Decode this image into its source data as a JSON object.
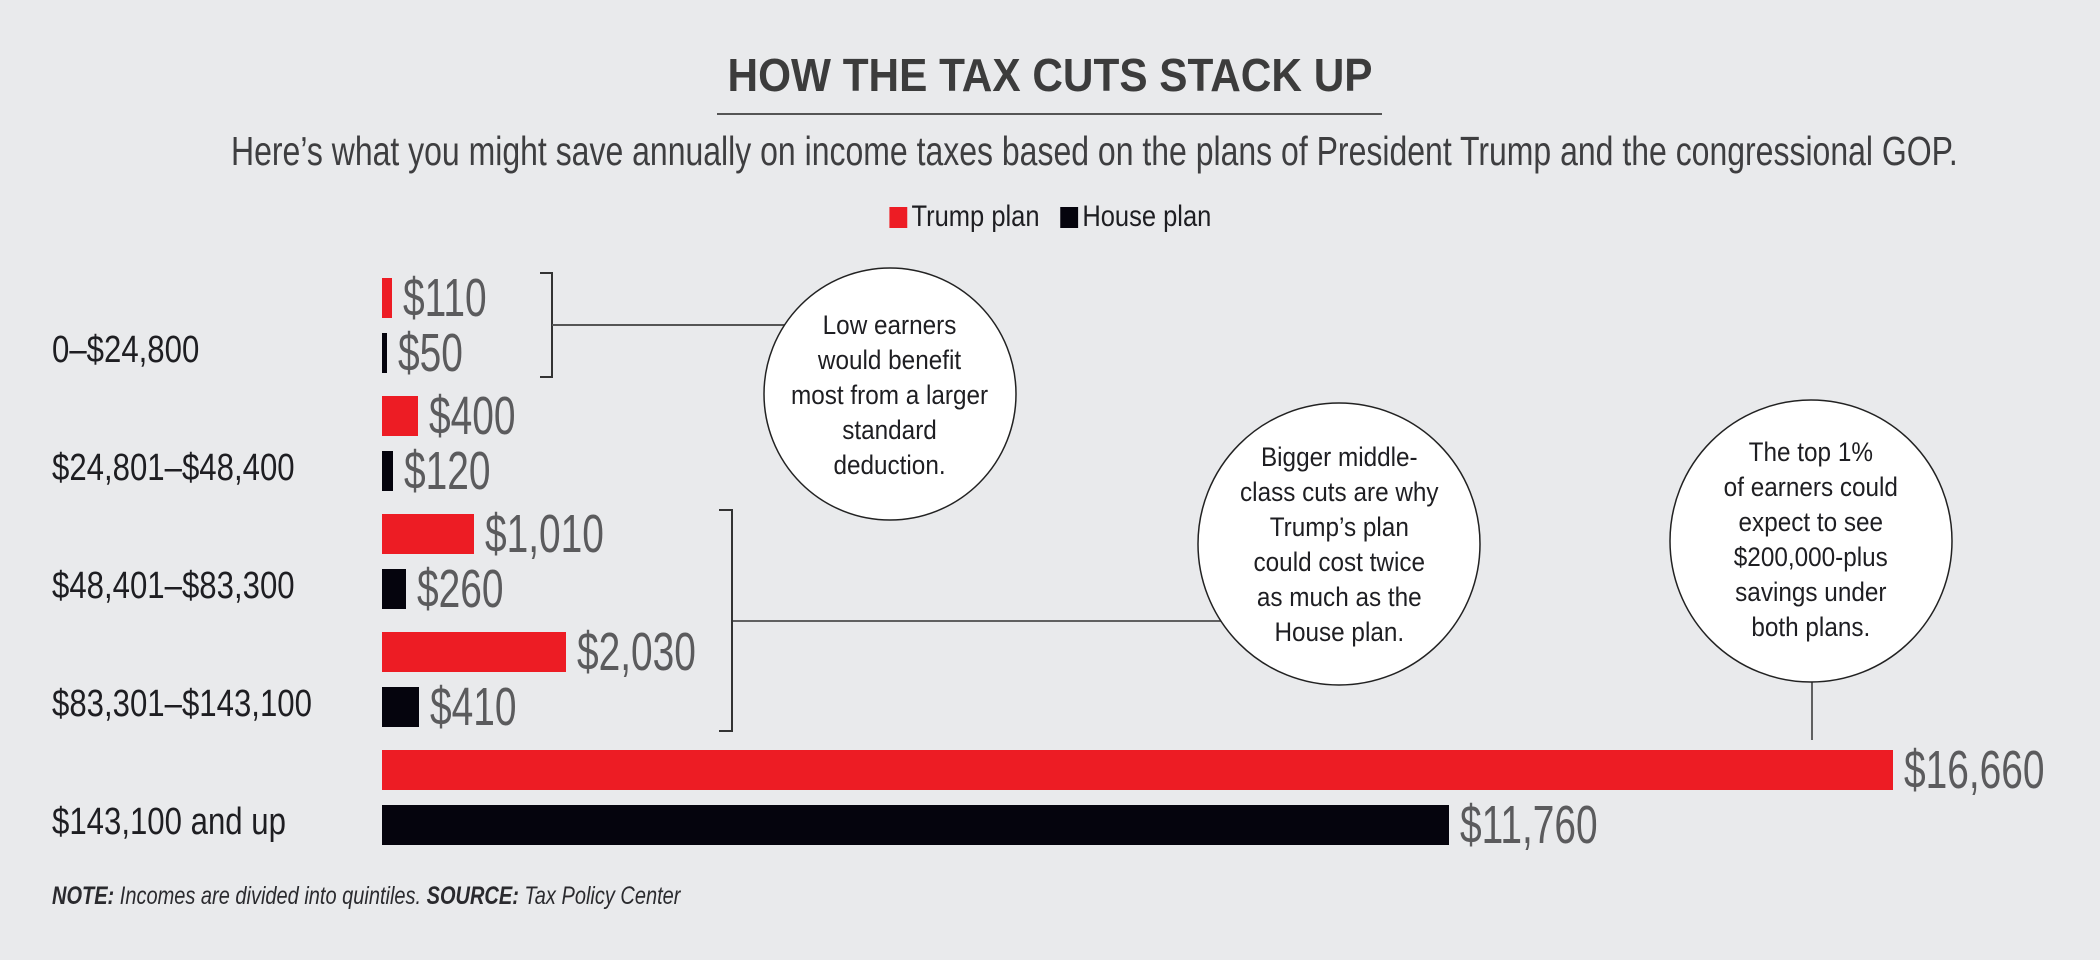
{
  "title": "HOW THE TAX CUTS STACK UP",
  "subtitle": "Here’s what you might save annually on income taxes based on the plans of President Trump and the congressional GOP.",
  "colors": {
    "background": "#e9eaec",
    "trump": "#ed1c24",
    "house": "#05040d",
    "value_label": "#5b5b5d",
    "text": "#1e1e22"
  },
  "legend": [
    {
      "label": "Trump plan",
      "color": "#ed1c24"
    },
    {
      "label": "House plan",
      "color": "#05040d"
    }
  ],
  "chart_data": {
    "type": "bar",
    "orientation": "horizontal",
    "title": "HOW THE TAX CUTS STACK UP",
    "subtitle": "Here’s what you might save annually on income taxes based on the plans of President Trump and the congressional GOP.",
    "categories": [
      "0–$24,800",
      "$24,801–$48,400",
      "$48,401–$83,300",
      "$83,301–$143,100",
      "$143,100 and up"
    ],
    "series": [
      {
        "name": "Trump plan",
        "values": [
          110,
          400,
          1010,
          2030,
          16660
        ],
        "labels": [
          "$110",
          "$400",
          "$1,010",
          "$2,030",
          "$16,660"
        ]
      },
      {
        "name": "House plan",
        "values": [
          50,
          120,
          260,
          410,
          11760
        ],
        "labels": [
          "$50",
          "$120",
          "$260",
          "$410",
          "$11,760"
        ]
      }
    ],
    "xlabel": "",
    "ylabel": "",
    "xlim": [
      0,
      16660
    ],
    "grid": false,
    "legend_position": "top-center",
    "annotations": [
      {
        "text": "Low earners would benefit most from a larger standard deduction.",
        "lines": [
          "Low earners",
          "would benefit",
          "most from a larger",
          "standard",
          "deduction."
        ],
        "refers_to": [
          "0–$24,800"
        ]
      },
      {
        "text": "Bigger middle-class cuts are why Trump’s plan could cost twice as much as the House plan.",
        "lines": [
          "Bigger middle-",
          "class cuts are why",
          "Trump’s plan",
          "could cost twice",
          "as much as the",
          "House plan."
        ],
        "refers_to": [
          "$48,401–$83,300",
          "$83,301–$143,100"
        ]
      },
      {
        "text": "The top 1% of earners could expect to see $200,000-plus savings under both plans.",
        "lines": [
          "The top 1%",
          "of earners could",
          "expect to see",
          "$200,000-plus",
          "savings under",
          "both plans."
        ],
        "refers_to": [
          "$143,100 and up"
        ]
      }
    ]
  },
  "footnote": {
    "note_label": "NOTE:",
    "note_text": " Incomes are divided into quintiles. ",
    "source_label": "SOURCE:",
    "source_text": " Tax Policy Center"
  }
}
